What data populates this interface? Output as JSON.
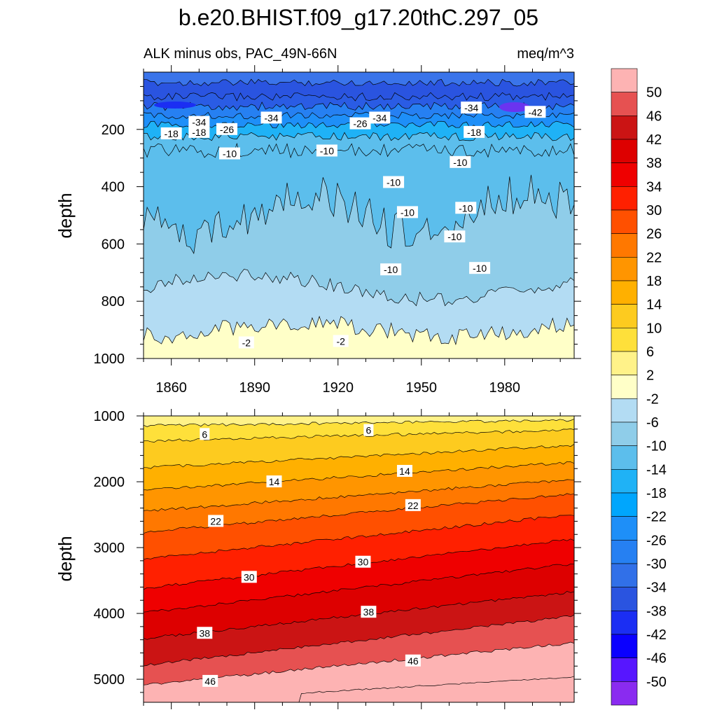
{
  "chart_data": {
    "type": "contour",
    "title": "b.e20.BHIST.f09_g17.20thC.297_05",
    "subtitle_left": "ALK minus obs, PAC_49N-66N",
    "subtitle_right": "meq/m^3",
    "colorbar": {
      "labels": [
        "50",
        "46",
        "42",
        "38",
        "34",
        "30",
        "26",
        "22",
        "18",
        "14",
        "10",
        "6",
        "2",
        "-2",
        "-6",
        "-10",
        "-14",
        "-18",
        "-22",
        "-26",
        "-30",
        "-34",
        "-38",
        "-42",
        "-46",
        "-50"
      ],
      "colors": [
        "#fdb3b3",
        "#e65151",
        "#cb1414",
        "#dd0000",
        "#ef0000",
        "#ff2000",
        "#ff5000",
        "#ff7800",
        "#ff9500",
        "#ffb000",
        "#fdcb1f",
        "#fee03a",
        "#fff289",
        "#ffffc8",
        "#b3dcf3",
        "#8fcde9",
        "#5cbeec",
        "#1fb2f6",
        "#00a6fd",
        "#1e8ff8",
        "#2680f2",
        "#3170e8",
        "#2a54e0",
        "#1b2ef3",
        "#0a00ff",
        "#5716ff",
        "#8a2bf0"
      ]
    },
    "panels": [
      {
        "name": "top",
        "ylabel": "depth",
        "ylim": [
          1000,
          0
        ],
        "yticks": [
          "200",
          "400",
          "600",
          "800",
          "1000"
        ],
        "xlim": [
          1850,
          2005
        ],
        "xticks": [
          "1860",
          "1890",
          "1920",
          "1950",
          "1980"
        ],
        "contour_labels": [
          {
            "text": "-34",
            "x": 1935,
            "y": 160
          },
          {
            "text": "-42",
            "x": 1991,
            "y": 140
          },
          {
            "text": "-34",
            "x": 1896,
            "y": 160
          },
          {
            "text": "-34",
            "x": 1870,
            "y": 175
          },
          {
            "text": "-26",
            "x": 1928,
            "y": 180
          },
          {
            "text": "-18",
            "x": 1870,
            "y": 210
          },
          {
            "text": "-26",
            "x": 1880,
            "y": 200
          },
          {
            "text": "-18",
            "x": 1860,
            "y": 215
          },
          {
            "text": "-18",
            "x": 1969,
            "y": 210
          },
          {
            "text": "-34",
            "x": 1968,
            "y": 125
          },
          {
            "text": "-10",
            "x": 1881,
            "y": 285
          },
          {
            "text": "-10",
            "x": 1916,
            "y": 275
          },
          {
            "text": "-10",
            "x": 1964,
            "y": 315
          },
          {
            "text": "-10",
            "x": 1940,
            "y": 385
          },
          {
            "text": "-10",
            "x": 1945,
            "y": 490
          },
          {
            "text": "-10",
            "x": 1966,
            "y": 475
          },
          {
            "text": "-10",
            "x": 1962,
            "y": 575
          },
          {
            "text": "-10",
            "x": 1939,
            "y": 690
          },
          {
            "text": "-10",
            "x": 1971,
            "y": 685
          },
          {
            "text": "-2",
            "x": 1887,
            "y": 945
          },
          {
            "text": "-2",
            "x": 1921,
            "y": 940
          }
        ]
      },
      {
        "name": "bottom",
        "ylabel": "depth",
        "ylim": [
          1000,
          5350
        ],
        "yticks": [
          "1000",
          "2000",
          "3000",
          "4000",
          "5000"
        ],
        "xlim": [
          1850,
          2005
        ],
        "contour_labels": [
          {
            "text": "6",
            "x": 1872,
            "y": 1280
          },
          {
            "text": "6",
            "x": 1931,
            "y": 1220
          },
          {
            "text": "14",
            "x": 1897,
            "y": 2000
          },
          {
            "text": "14",
            "x": 1944,
            "y": 1840
          },
          {
            "text": "22",
            "x": 1876,
            "y": 2600
          },
          {
            "text": "22",
            "x": 1947,
            "y": 2360
          },
          {
            "text": "30",
            "x": 1888,
            "y": 3450
          },
          {
            "text": "30",
            "x": 1929,
            "y": 3220
          },
          {
            "text": "38",
            "x": 1872,
            "y": 4300
          },
          {
            "text": "38",
            "x": 1931,
            "y": 3980
          },
          {
            "text": "46",
            "x": 1874,
            "y": 5030
          },
          {
            "text": "46",
            "x": 1947,
            "y": 4720
          }
        ]
      }
    ]
  }
}
